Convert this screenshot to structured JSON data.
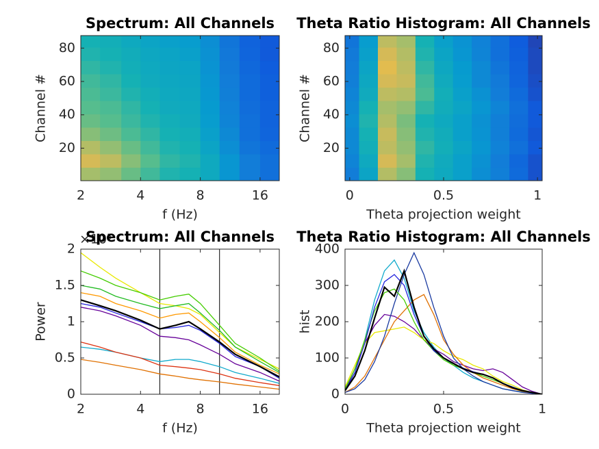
{
  "chart_data": [
    {
      "type": "heatmap",
      "title": "Spectrum: All Channels",
      "xlabel": "f (Hz)",
      "ylabel": "Channel #",
      "xscale": "log",
      "xlim": [
        2,
        20
      ],
      "xticks": [
        2,
        4,
        8,
        16
      ],
      "ylim": [
        0.5,
        87.5
      ],
      "yticks": [
        20,
        40,
        60,
        80
      ],
      "colormap": "parula",
      "clim": [
        0,
        1
      ],
      "xbins": [
        2,
        2.5,
        3.2,
        4,
        5,
        6.3,
        8,
        10,
        12.6,
        16,
        20
      ],
      "ybins": [
        0.5,
        8.5,
        16.5,
        24.5,
        32.5,
        40.5,
        48.5,
        56.5,
        64.5,
        72.5,
        80.5,
        87.5
      ],
      "z": [
        [
          0.75,
          0.72,
          0.65,
          0.58,
          0.52,
          0.5,
          0.45,
          0.35,
          0.25,
          0.2
        ],
        [
          0.85,
          0.8,
          0.7,
          0.62,
          0.55,
          0.52,
          0.45,
          0.35,
          0.25,
          0.2
        ],
        [
          0.78,
          0.72,
          0.65,
          0.58,
          0.52,
          0.5,
          0.42,
          0.32,
          0.22,
          0.18
        ],
        [
          0.7,
          0.66,
          0.6,
          0.55,
          0.5,
          0.48,
          0.4,
          0.3,
          0.2,
          0.16
        ],
        [
          0.65,
          0.62,
          0.57,
          0.52,
          0.48,
          0.46,
          0.38,
          0.28,
          0.2,
          0.15
        ],
        [
          0.62,
          0.6,
          0.55,
          0.5,
          0.46,
          0.45,
          0.37,
          0.27,
          0.19,
          0.15
        ],
        [
          0.6,
          0.57,
          0.52,
          0.48,
          0.45,
          0.44,
          0.36,
          0.26,
          0.18,
          0.14
        ],
        [
          0.58,
          0.55,
          0.5,
          0.46,
          0.44,
          0.43,
          0.35,
          0.25,
          0.18,
          0.14
        ],
        [
          0.55,
          0.52,
          0.48,
          0.45,
          0.43,
          0.42,
          0.34,
          0.24,
          0.17,
          0.13
        ],
        [
          0.52,
          0.5,
          0.47,
          0.44,
          0.42,
          0.4,
          0.33,
          0.23,
          0.16,
          0.12
        ],
        [
          0.5,
          0.48,
          0.45,
          0.42,
          0.4,
          0.38,
          0.32,
          0.22,
          0.15,
          0.12
        ]
      ]
    },
    {
      "type": "heatmap",
      "title": "Theta Ratio Histogram: All Channels",
      "xlabel": "Theta projection weight",
      "ylabel": "Channel #",
      "xlim": [
        -0.025,
        1.025
      ],
      "xticks": [
        0,
        0.5,
        1
      ],
      "ylim": [
        0.5,
        87.5
      ],
      "yticks": [
        20,
        40,
        60,
        80
      ],
      "colormap": "parula",
      "clim": [
        0,
        1
      ],
      "xbins": [
        -0.025,
        0.05,
        0.15,
        0.25,
        0.35,
        0.45,
        0.55,
        0.65,
        0.75,
        0.85,
        0.95,
        1.025
      ],
      "ybins": [
        0.5,
        8.5,
        16.5,
        24.5,
        32.5,
        40.5,
        48.5,
        56.5,
        64.5,
        72.5,
        80.5,
        87.5
      ],
      "z": [
        [
          0.25,
          0.42,
          0.78,
          0.7,
          0.5,
          0.45,
          0.4,
          0.32,
          0.26,
          0.18,
          0.1
        ],
        [
          0.28,
          0.45,
          0.85,
          0.75,
          0.52,
          0.46,
          0.4,
          0.33,
          0.25,
          0.17,
          0.1
        ],
        [
          0.3,
          0.48,
          0.8,
          0.72,
          0.55,
          0.48,
          0.42,
          0.35,
          0.27,
          0.2,
          0.12
        ],
        [
          0.3,
          0.5,
          0.82,
          0.7,
          0.52,
          0.47,
          0.4,
          0.34,
          0.26,
          0.18,
          0.11
        ],
        [
          0.32,
          0.52,
          0.78,
          0.68,
          0.5,
          0.45,
          0.4,
          0.33,
          0.26,
          0.19,
          0.12
        ],
        [
          0.3,
          0.5,
          0.75,
          0.72,
          0.55,
          0.47,
          0.42,
          0.35,
          0.28,
          0.2,
          0.12
        ],
        [
          0.28,
          0.46,
          0.8,
          0.78,
          0.6,
          0.48,
          0.4,
          0.33,
          0.25,
          0.18,
          0.1
        ],
        [
          0.26,
          0.44,
          0.85,
          0.82,
          0.58,
          0.46,
          0.38,
          0.3,
          0.24,
          0.16,
          0.09
        ],
        [
          0.25,
          0.42,
          0.88,
          0.8,
          0.55,
          0.44,
          0.37,
          0.3,
          0.22,
          0.15,
          0.08
        ],
        [
          0.24,
          0.4,
          0.85,
          0.78,
          0.52,
          0.42,
          0.35,
          0.28,
          0.2,
          0.14,
          0.08
        ],
        [
          0.22,
          0.38,
          0.8,
          0.75,
          0.5,
          0.4,
          0.34,
          0.27,
          0.2,
          0.13,
          0.07
        ]
      ]
    },
    {
      "type": "line",
      "title": "Spectrum: All Channels",
      "xlabel": "f (Hz)",
      "ylabel": "Power",
      "y_exponent_label": "×10⁵",
      "xscale": "log",
      "xlim": [
        2,
        20
      ],
      "xticks": [
        2,
        4,
        8,
        16
      ],
      "ylim": [
        0,
        200000
      ],
      "yticks": [
        0,
        {
          "value": 50000,
          "label": "0.5"
        },
        {
          "value": 100000,
          "label": "1"
        },
        {
          "value": 150000,
          "label": "1.5"
        },
        {
          "value": 200000,
          "label": "2"
        }
      ],
      "vlines": [
        5,
        10
      ],
      "x": [
        2,
        2.5,
        3,
        4,
        5,
        6,
        7,
        8,
        10,
        12,
        16,
        20
      ],
      "series": [
        {
          "color": "#e8e800",
          "values": [
            195000,
            175000,
            160000,
            140000,
            125000,
            122000,
            118000,
            110000,
            85000,
            65000,
            48000,
            35000
          ]
        },
        {
          "color": "#44cc00",
          "values": [
            170000,
            160000,
            150000,
            140000,
            130000,
            135000,
            138000,
            125000,
            95000,
            70000,
            50000,
            32000
          ]
        },
        {
          "color": "#22bb22",
          "values": [
            150000,
            145000,
            135000,
            125000,
            118000,
            122000,
            125000,
            112000,
            88000,
            65000,
            45000,
            30000
          ]
        },
        {
          "color": "#ff9900",
          "values": [
            140000,
            135000,
            125000,
            115000,
            105000,
            110000,
            112000,
            100000,
            78000,
            58000,
            40000,
            28000
          ]
        },
        {
          "color": "#2222dd",
          "values": [
            125000,
            120000,
            112000,
            100000,
            90000,
            92000,
            95000,
            88000,
            70000,
            52000,
            38000,
            22000
          ]
        },
        {
          "color": "#660099",
          "values": [
            120000,
            115000,
            108000,
            95000,
            80000,
            78000,
            75000,
            68000,
            55000,
            42000,
            30000,
            18000
          ]
        },
        {
          "color": "#11aacc",
          "values": [
            65000,
            62000,
            58000,
            50000,
            45000,
            48000,
            48000,
            45000,
            38000,
            30000,
            22000,
            15000
          ]
        },
        {
          "color": "#dd3311",
          "values": [
            72000,
            65000,
            58000,
            50000,
            40000,
            38000,
            36000,
            34000,
            28000,
            22000,
            16000,
            12000
          ]
        },
        {
          "color": "#e07000",
          "values": [
            48000,
            44000,
            40000,
            34000,
            28000,
            25000,
            22000,
            20000,
            17000,
            14000,
            10000,
            7000
          ]
        },
        {
          "color": "#000000",
          "values": [
            130000,
            122000,
            115000,
            102000,
            90000,
            95000,
            100000,
            90000,
            72000,
            55000,
            38000,
            24000
          ]
        }
      ]
    },
    {
      "type": "line",
      "title": "Theta Ratio Histogram: All Channels",
      "xlabel": "Theta projection weight",
      "ylabel": "hist",
      "xlim": [
        0,
        1
      ],
      "xticks": [
        0,
        0.5,
        1
      ],
      "ylim": [
        0,
        400
      ],
      "yticks": [
        0,
        100,
        200,
        300,
        400
      ],
      "x": [
        0,
        0.05,
        0.1,
        0.15,
        0.2,
        0.25,
        0.3,
        0.35,
        0.4,
        0.45,
        0.5,
        0.55,
        0.6,
        0.65,
        0.7,
        0.75,
        0.8,
        0.85,
        0.9,
        0.95,
        1
      ],
      "series": [
        {
          "color": "#11aacc",
          "values": [
            10,
            60,
            150,
            260,
            340,
            370,
            320,
            230,
            170,
            130,
            100,
            80,
            60,
            45,
            35,
            25,
            15,
            10,
            6,
            3,
            0
          ]
        },
        {
          "color": "#660099",
          "values": [
            10,
            70,
            140,
            190,
            220,
            215,
            200,
            180,
            150,
            125,
            110,
            90,
            80,
            70,
            65,
            70,
            60,
            40,
            20,
            8,
            0
          ]
        },
        {
          "color": "#e8e800",
          "values": [
            20,
            80,
            140,
            170,
            175,
            180,
            185,
            170,
            150,
            140,
            120,
            105,
            95,
            80,
            70,
            50,
            35,
            25,
            12,
            5,
            0
          ]
        },
        {
          "color": "#e07000",
          "values": [
            5,
            20,
            50,
            100,
            150,
            200,
            230,
            260,
            275,
            220,
            150,
            110,
            80,
            60,
            45,
            35,
            25,
            15,
            8,
            3,
            0
          ]
        },
        {
          "color": "#1a3aa0",
          "values": [
            5,
            15,
            40,
            90,
            160,
            250,
            330,
            390,
            330,
            240,
            160,
            100,
            70,
            50,
            35,
            25,
            15,
            10,
            5,
            2,
            0
          ]
        },
        {
          "color": "#44cc00",
          "values": [
            15,
            70,
            150,
            230,
            280,
            290,
            260,
            200,
            150,
            120,
            95,
            80,
            70,
            60,
            50,
            40,
            30,
            20,
            10,
            5,
            0
          ]
        },
        {
          "color": "#2222dd",
          "values": [
            10,
            60,
            140,
            240,
            310,
            330,
            300,
            220,
            160,
            120,
            100,
            85,
            72,
            62,
            55,
            45,
            30,
            20,
            10,
            4,
            0
          ]
        },
        {
          "color": "#000000",
          "values": [
            10,
            50,
            120,
            210,
            295,
            270,
            340,
            240,
            160,
            125,
            100,
            85,
            70,
            60,
            55,
            45,
            30,
            18,
            10,
            5,
            0
          ]
        }
      ]
    }
  ]
}
